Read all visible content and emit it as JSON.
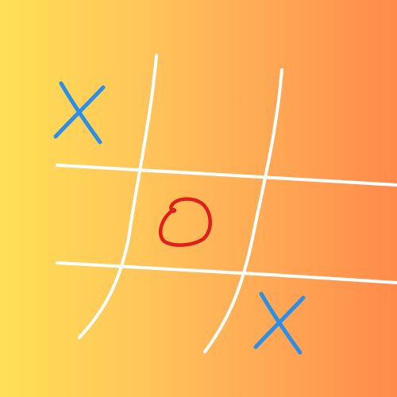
{
  "game": {
    "type": "tic-tac-toe",
    "board": [
      [
        "X",
        "",
        ""
      ],
      [
        "",
        "O",
        ""
      ],
      [
        "",
        "",
        "X"
      ]
    ]
  },
  "colors": {
    "background_start": "#ffe055",
    "background_end": "#ff8a4a",
    "grid": "#ffffff",
    "x_mark": "#2b8fe8",
    "o_mark": "#e01e1e"
  }
}
